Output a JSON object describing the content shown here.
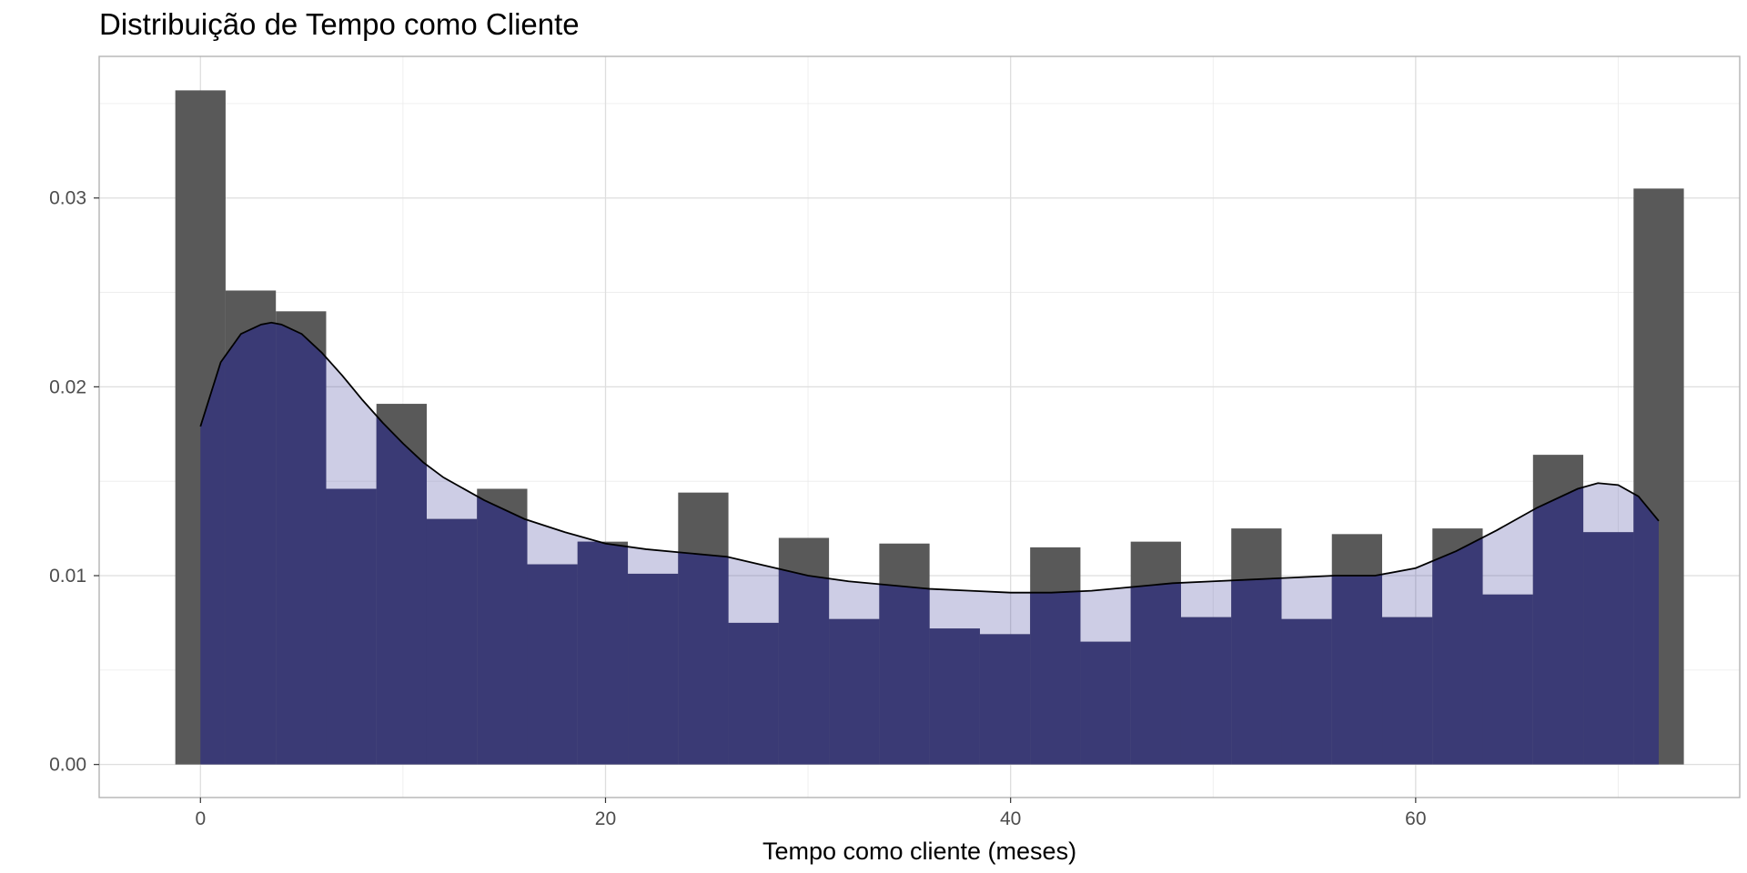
{
  "chart_data": {
    "type": "bar",
    "title": "Distribuição de Tempo como Cliente",
    "xlabel": "Tempo como cliente (meses)",
    "ylabel": "",
    "xlim": [
      -5,
      76
    ],
    "ylim": [
      -0.00175,
      0.0375
    ],
    "x_ticks": [
      {
        "value": 0,
        "label": "0"
      },
      {
        "value": 20,
        "label": "20"
      },
      {
        "value": 40,
        "label": "40"
      },
      {
        "value": 60,
        "label": "60"
      }
    ],
    "y_ticks": [
      {
        "value": 0.0,
        "label": "0.00"
      },
      {
        "value": 0.01,
        "label": "0.01"
      },
      {
        "value": 0.02,
        "label": "0.02"
      },
      {
        "value": 0.03,
        "label": "0.03"
      }
    ],
    "grid": true,
    "histogram": {
      "bin_width": 2.4828,
      "bin_starts": [
        -1.2414,
        1.2414,
        3.7241,
        6.2069,
        8.6897,
        11.1724,
        13.6552,
        16.1379,
        18.6207,
        21.1034,
        23.5862,
        26.069,
        28.5517,
        31.0345,
        33.5172,
        36.0,
        38.4828,
        40.9655,
        43.4483,
        45.931,
        48.4138,
        50.8966,
        53.3793,
        55.8621,
        58.3448,
        60.8276,
        63.3103,
        65.7931,
        68.2759,
        70.7586
      ],
      "densities": [
        0.0357,
        0.0251,
        0.024,
        0.0146,
        0.0191,
        0.013,
        0.0146,
        0.0106,
        0.0118,
        0.0101,
        0.0144,
        0.0075,
        0.012,
        0.0077,
        0.0117,
        0.0072,
        0.0069,
        0.0115,
        0.0065,
        0.0118,
        0.0078,
        0.0125,
        0.0077,
        0.0122,
        0.0078,
        0.0125,
        0.009,
        0.0164,
        0.0123,
        0.0305
      ],
      "color": "#595959"
    },
    "density": {
      "x": [
        0,
        1,
        2,
        3,
        3.5,
        4,
        5,
        6,
        7,
        8,
        9,
        10,
        11,
        12,
        14,
        16,
        18,
        20,
        22,
        24,
        26,
        28,
        30,
        32,
        34,
        36,
        38,
        40,
        42,
        44,
        46,
        48,
        50,
        52,
        54,
        56,
        58,
        60,
        62,
        64,
        66,
        68,
        69,
        70,
        71,
        72
      ],
      "y": [
        0.0179,
        0.0213,
        0.0228,
        0.0233,
        0.0234,
        0.0233,
        0.0228,
        0.0218,
        0.0206,
        0.0193,
        0.0181,
        0.017,
        0.016,
        0.0152,
        0.014,
        0.013,
        0.0123,
        0.0117,
        0.0114,
        0.0112,
        0.011,
        0.0105,
        0.01,
        0.0097,
        0.0095,
        0.0093,
        0.0092,
        0.0091,
        0.0091,
        0.0092,
        0.0094,
        0.0096,
        0.0097,
        0.0098,
        0.0099,
        0.01,
        0.01,
        0.0104,
        0.0113,
        0.0124,
        0.0136,
        0.0146,
        0.0149,
        0.0148,
        0.0142,
        0.0129
      ],
      "fill": "#3d3d99",
      "fill_opacity": 0.26,
      "overlay_fill": "#3a3a75",
      "line_color": "#000000"
    }
  }
}
